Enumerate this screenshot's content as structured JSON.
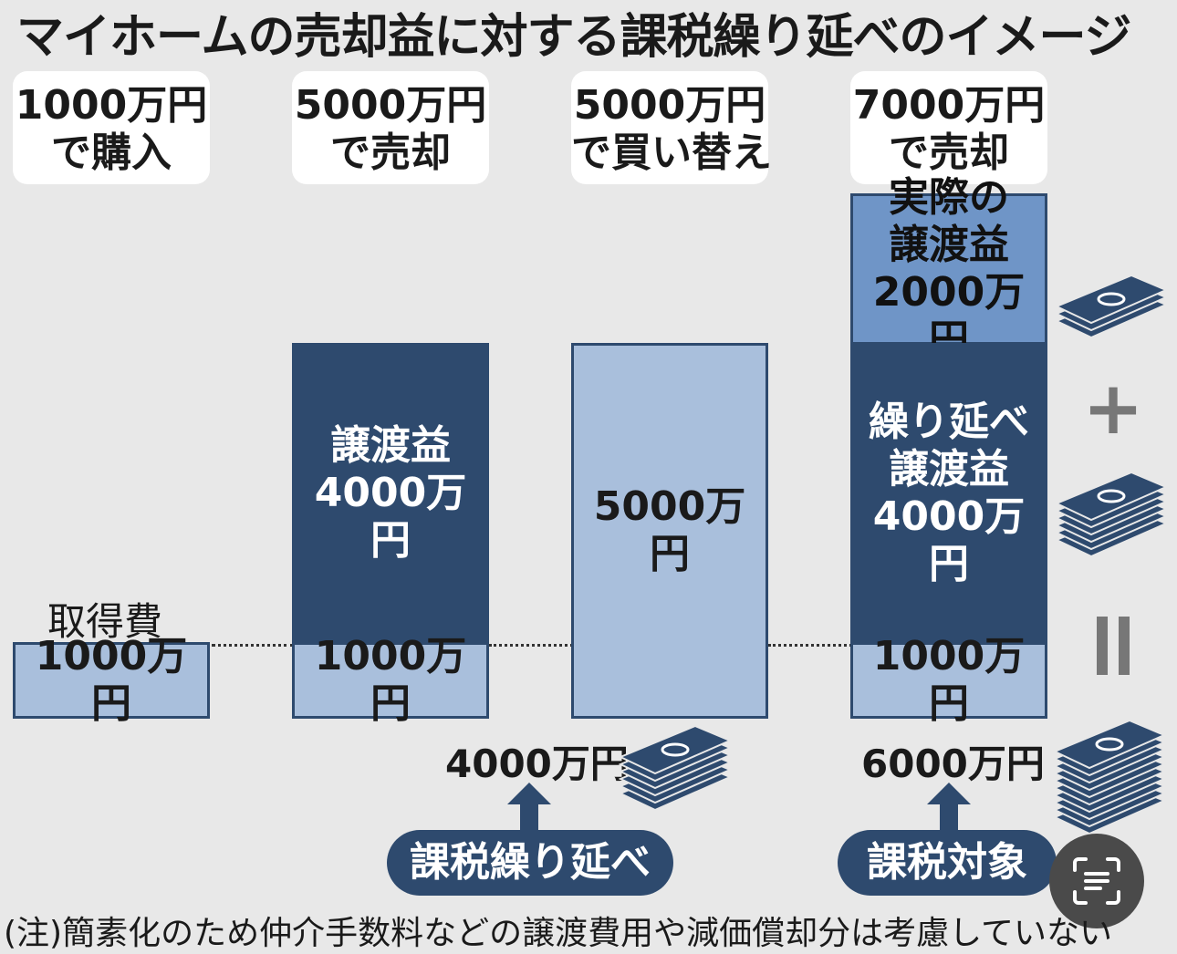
{
  "title": "マイホームの売却益に対する課税繰り延べのイメージ",
  "headers": [
    {
      "line1": "1000万円",
      "line2": "で購入"
    },
    {
      "line1": "5000万円",
      "line2": "で売却"
    },
    {
      "line1": "5000万円",
      "line2": "で買い替え"
    },
    {
      "line1": "7000万円",
      "line2": "で売却"
    }
  ],
  "acquisition_label": "取得費",
  "col1": {
    "base": "1000万円"
  },
  "col2": {
    "gain": "譲渡益\n4000万円",
    "base": "1000万円"
  },
  "col3": {
    "value": "5000万円"
  },
  "col4": {
    "actual_gain": "実際の\n譲渡益\n2000万円",
    "deferred_gain": "繰り延べ\n譲渡益\n4000万円",
    "base": "1000万円"
  },
  "below": {
    "amount_left": "4000万円",
    "amount_right": "6000万円"
  },
  "pills": {
    "left": "課税繰り延べ",
    "right": "課税対象"
  },
  "note": "(注)簡素化のため仲介手数料などの譲渡費用や減価償却分は考慮していない",
  "symbols": {
    "plus": "+",
    "equals": "="
  },
  "colors": {
    "dark": "#2e4a6e",
    "light": "#a9bfdc",
    "mid": "#6f95c7",
    "background": "#e8e8e8"
  },
  "icons": {
    "money": "money-stack-icon",
    "arrow": "arrow-up-icon",
    "fab": "scan-text-icon"
  }
}
